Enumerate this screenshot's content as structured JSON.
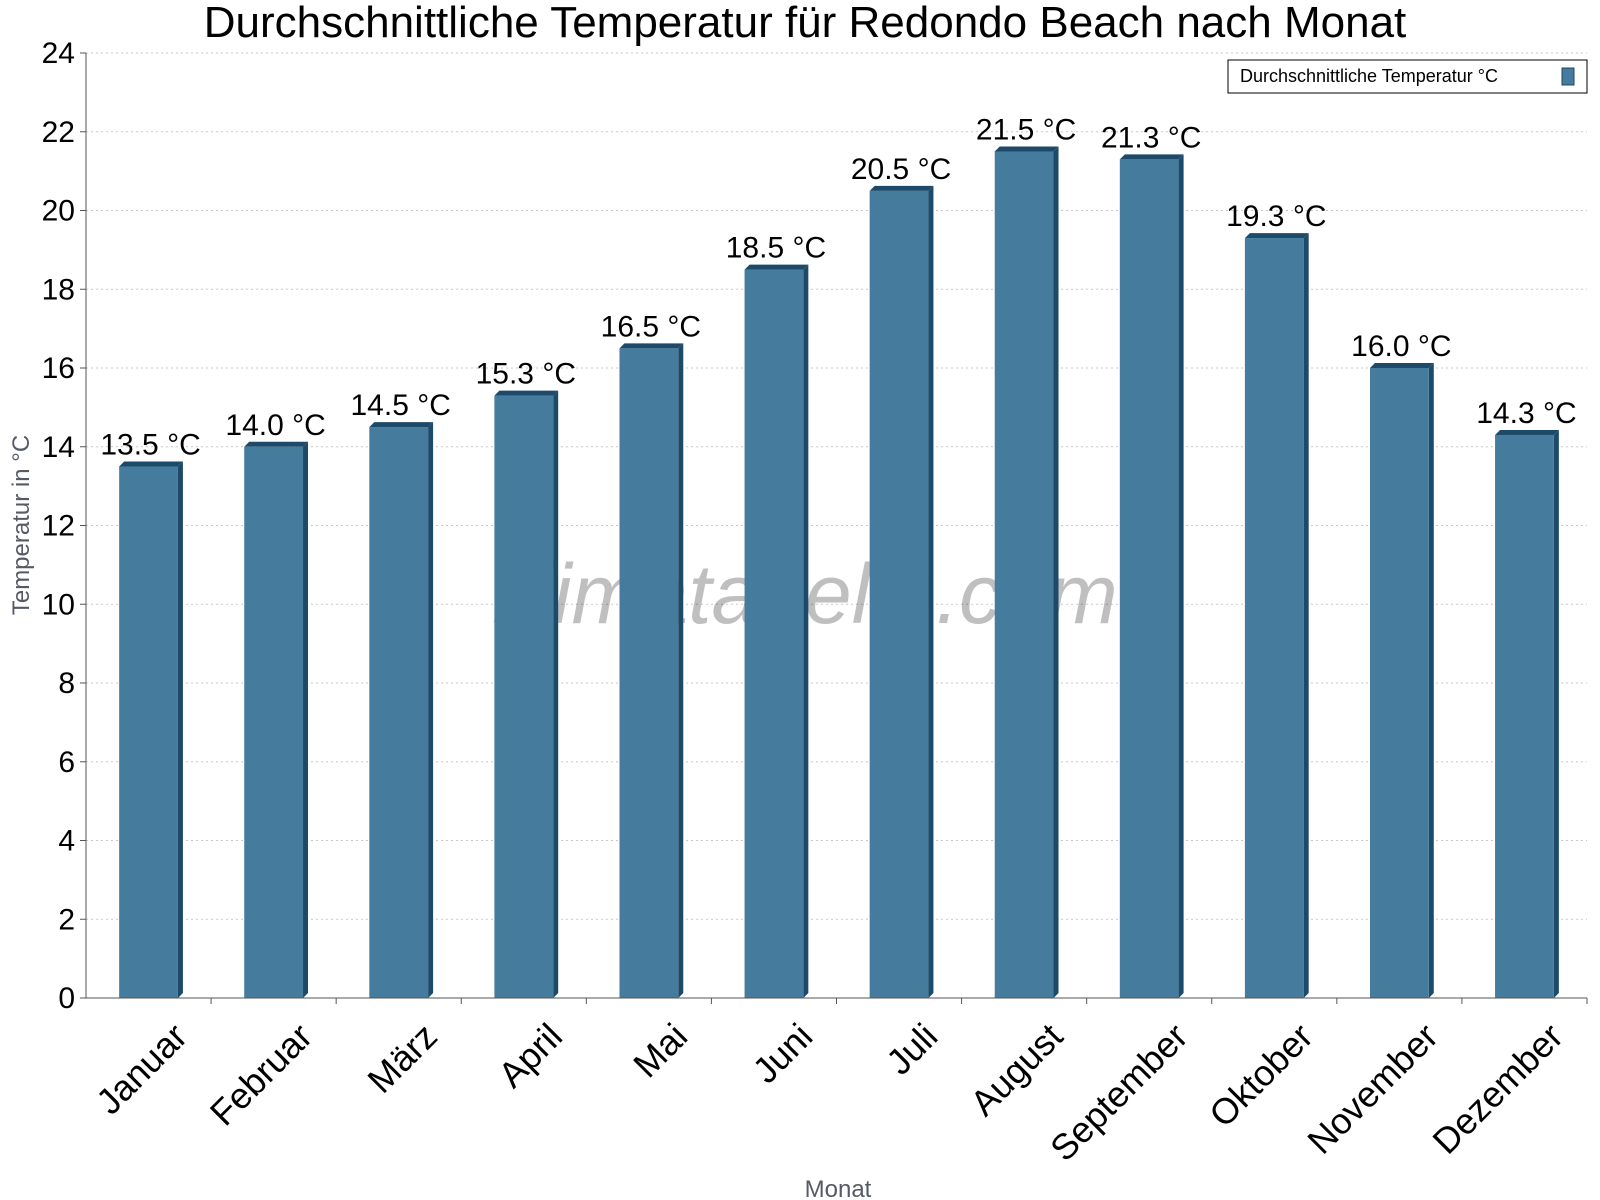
{
  "chart_data": {
    "type": "bar",
    "title": "Durchschnittliche Temperatur für Redondo Beach nach Monat",
    "xlabel": "Monat",
    "ylabel": "Temperatur in °C",
    "categories": [
      "Januar",
      "Februar",
      "März",
      "April",
      "Mai",
      "Juni",
      "Juli",
      "August",
      "September",
      "Oktober",
      "November",
      "Dezember"
    ],
    "series": [
      {
        "name": "Durchschnittliche Temperatur °C",
        "values": [
          13.5,
          14.0,
          14.5,
          15.3,
          16.5,
          18.5,
          20.5,
          21.5,
          21.3,
          19.3,
          16.0,
          14.3
        ],
        "labels": [
          "13.5 °C",
          "14.0 °C",
          "14.5 °C",
          "15.3 °C",
          "16.5 °C",
          "18.5 °C",
          "20.5 °C",
          "21.5 °C",
          "21.3 °C",
          "19.3 °C",
          "16.0 °C",
          "14.3 °C"
        ]
      }
    ],
    "ylim": [
      0,
      24
    ],
    "yticks": [
      "0",
      "2",
      "4",
      "6",
      "8",
      "10",
      "12",
      "14",
      "16",
      "18",
      "20",
      "22",
      "24"
    ],
    "grid": true,
    "legend_position": "top-right",
    "colors": {
      "bar": "#457b9d",
      "bar_edge": "#1d4a68",
      "grid": "#c8c8c8",
      "axis_title": "#555a66"
    },
    "watermark": "klimatabelle.com"
  }
}
